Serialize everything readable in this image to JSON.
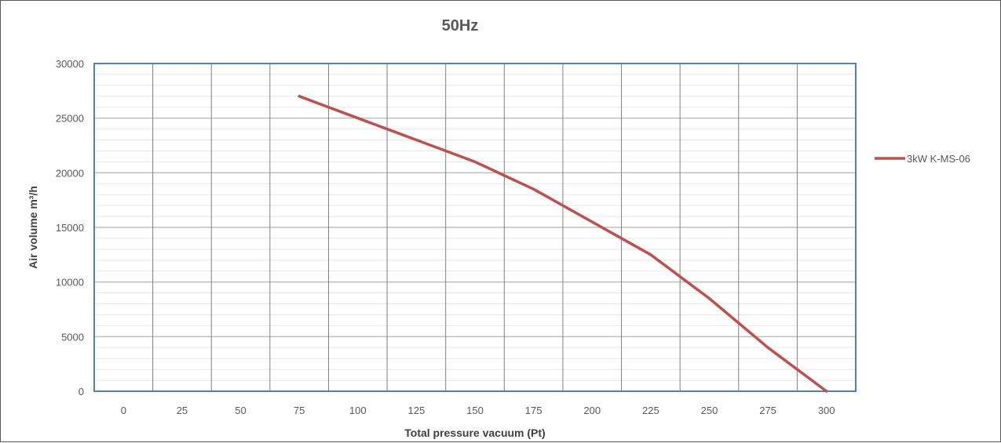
{
  "chart_data": {
    "type": "line",
    "title": "50Hz",
    "xlabel": "Total pressure vacuum (Pt)",
    "ylabel": "Air volume m³/h",
    "categories": [
      "0",
      "25",
      "50",
      "75",
      "100",
      "125",
      "150",
      "175",
      "200",
      "225",
      "250",
      "275",
      "300"
    ],
    "yticks": [
      "0",
      "5000",
      "10000",
      "15000",
      "20000",
      "25000",
      "30000"
    ],
    "ylim": [
      0,
      30000
    ],
    "grid": true,
    "legend_position": "right",
    "series": [
      {
        "name": "3kW K-MS-06",
        "color": "#C0504D",
        "x": [
          75,
          100,
          125,
          150,
          175,
          200,
          225,
          250,
          275,
          300
        ],
        "values": [
          27000,
          25000,
          23000,
          21000,
          18500,
          15500,
          12500,
          8500,
          4000,
          0
        ]
      }
    ]
  }
}
